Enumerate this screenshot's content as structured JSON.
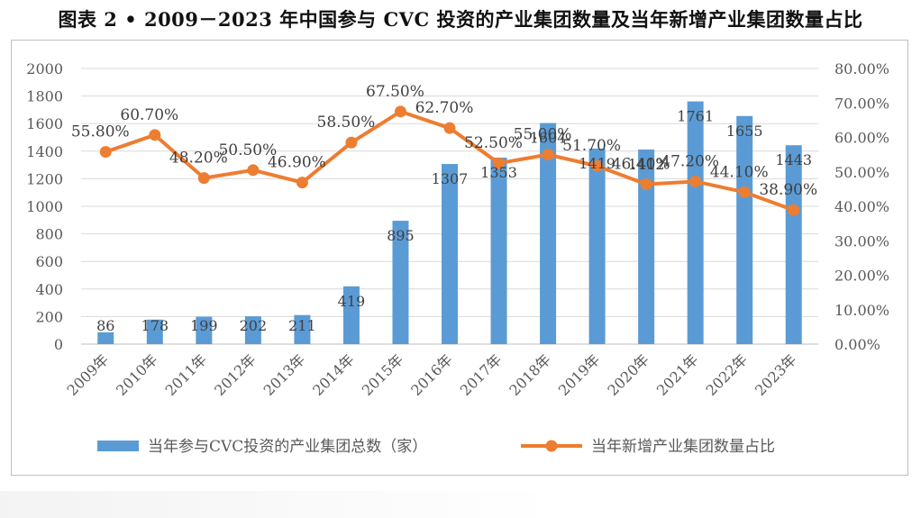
{
  "title": "图表 2 • 2009－2023 年中国参与 CVC 投资的产业集团数量及当年新增产业集团数量占比",
  "chart_data": {
    "type": "bar",
    "categories": [
      "2009年",
      "2010年",
      "2011年",
      "2012年",
      "2013年",
      "2014年",
      "2015年",
      "2016年",
      "2017年",
      "2018年",
      "2019年",
      "2020年",
      "2021年",
      "2022年",
      "2023年"
    ],
    "series": [
      {
        "name": "当年参与CVC投资的产业集团总数（家）",
        "type": "bar",
        "axis": "left",
        "color": "#5b9bd5",
        "values": [
          86,
          178,
          199,
          202,
          211,
          419,
          895,
          1307,
          1353,
          1604,
          1419,
          1412,
          1761,
          1655,
          1443
        ],
        "labels": [
          "86",
          "178",
          "199",
          "202",
          "211",
          "419",
          "895",
          "1307",
          "1353",
          "1604",
          "1419",
          "1412",
          "1761",
          "1655",
          "1443"
        ]
      },
      {
        "name": "当年新增产业集团数量占比",
        "type": "line",
        "axis": "right",
        "color": "#ed7d31",
        "values": [
          55.8,
          60.7,
          48.2,
          50.5,
          46.9,
          58.5,
          67.5,
          62.7,
          52.5,
          55.0,
          51.7,
          46.4,
          47.2,
          44.1,
          38.9
        ],
        "labels": [
          "55.80%",
          "60.70%",
          "48.20%",
          "50.50%",
          "46.90%",
          "58.50%",
          "67.50%",
          "62.70%",
          "52.50%",
          "55.00%",
          "51.70%",
          "46.40%",
          "47.20%",
          "44.10%",
          "38.90%"
        ]
      }
    ],
    "y_left": {
      "min": 0,
      "max": 2000,
      "ticks": [
        "0",
        "200",
        "400",
        "600",
        "800",
        "1000",
        "1200",
        "1400",
        "1600",
        "1800",
        "2000"
      ]
    },
    "y_right": {
      "min": 0,
      "max": 80,
      "ticks": [
        "0.00%",
        "10.00%",
        "20.00%",
        "30.00%",
        "40.00%",
        "50.00%",
        "60.00%",
        "70.00%",
        "80.00%"
      ]
    },
    "grid": true,
    "legend_position": "bottom"
  }
}
